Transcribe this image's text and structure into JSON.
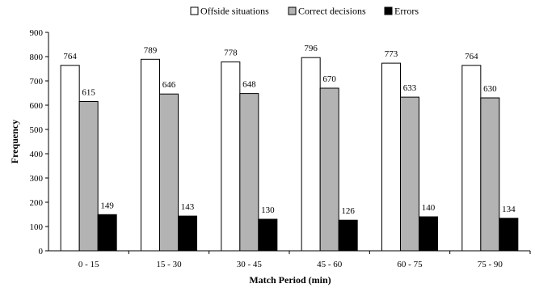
{
  "chart_data": {
    "type": "bar",
    "categories": [
      "0 - 15",
      "15 - 30",
      "30 - 45",
      "45 - 60",
      "60 - 75",
      "75 - 90"
    ],
    "series": [
      {
        "name": "Offside situations",
        "values": [
          764,
          789,
          778,
          796,
          773,
          764
        ],
        "color": "#ffffff"
      },
      {
        "name": "Correct decisions",
        "values": [
          615,
          646,
          648,
          670,
          633,
          630
        ],
        "color": "#b3b3b3"
      },
      {
        "name": "Errors",
        "values": [
          149,
          143,
          130,
          126,
          140,
          134
        ],
        "color": "#000000"
      }
    ],
    "title": "",
    "xlabel": "Match Period (min)",
    "ylabel": "Frequency",
    "ylim": [
      0,
      900
    ],
    "yticks": [
      0,
      100,
      200,
      300,
      400,
      500,
      600,
      700,
      800,
      900
    ],
    "grid": false,
    "legend_position": "top"
  }
}
